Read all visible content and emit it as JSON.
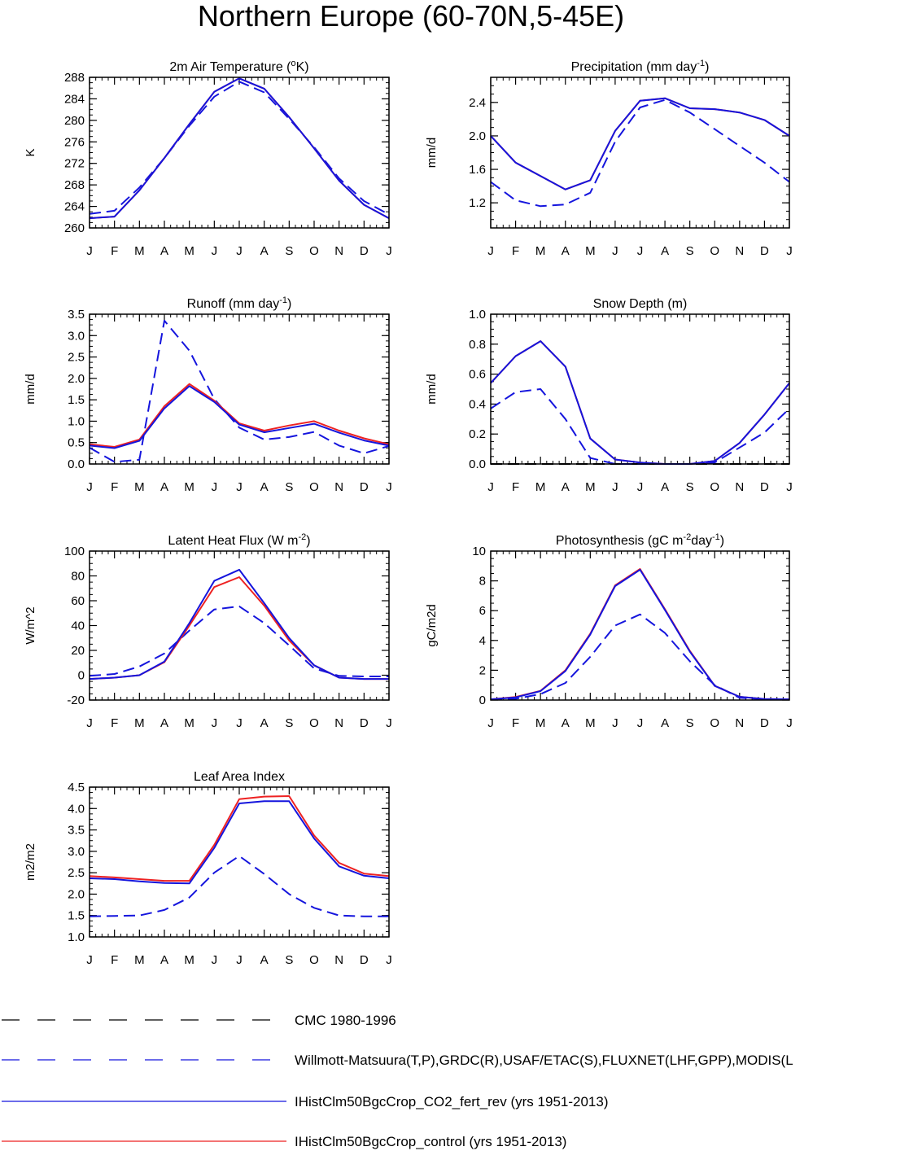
{
  "page_title": "Northern Europe (60-70N,5-45E)",
  "colors": {
    "model_co2": "#1515dd",
    "model_control": "#ee2222",
    "obs": "#1515dd",
    "cmc": "#000000"
  },
  "legend": [
    {
      "label": "CMC 1980-1996",
      "color": "#000000",
      "dash": "dashed"
    },
    {
      "label": "Willmott-Matsuura(T,P),GRDC(R),USAF/ETAC(S),FLUXNET(LHF,GPP),MODIS(L",
      "color": "#1515dd",
      "dash": "dashed"
    },
    {
      "label": "IHistClm50BgcCrop_CO2_fert_rev (yrs 1951-2013)",
      "color": "#1515dd",
      "dash": "solid"
    },
    {
      "label": "IHistClm50BgcCrop_control (yrs 1951-2013)",
      "color": "#ee2222",
      "dash": "solid"
    }
  ],
  "chart_data": [
    {
      "type": "line",
      "title": "2m Air Temperature (",
      "title_sup": "o",
      "title_after": "K)",
      "ylabel": "K",
      "categories": [
        "J",
        "F",
        "M",
        "A",
        "M",
        "J",
        "J",
        "A",
        "S",
        "O",
        "N",
        "D",
        "J"
      ],
      "ylim": [
        260,
        288
      ],
      "yticks": [
        "260",
        "264",
        "268",
        "272",
        "276",
        "280",
        "284",
        "288"
      ],
      "series": [
        {
          "color": "#1515dd",
          "dash": "dashed",
          "values": [
            262.6,
            263.2,
            267.5,
            273.0,
            279.0,
            284.4,
            287.2,
            285.2,
            280.3,
            275.0,
            269.2,
            265.0,
            262.5
          ]
        },
        {
          "color": "#ee2222",
          "dash": "solid",
          "values": [
            261.8,
            262.1,
            267.0,
            273.0,
            279.3,
            285.3,
            287.8,
            285.9,
            280.6,
            274.8,
            268.8,
            264.3,
            261.8
          ]
        },
        {
          "color": "#1515dd",
          "dash": "solid",
          "values": [
            261.8,
            262.1,
            267.0,
            273.0,
            279.3,
            285.3,
            287.8,
            285.9,
            280.6,
            274.8,
            268.8,
            264.3,
            261.8
          ]
        }
      ]
    },
    {
      "type": "line",
      "title": "Precipitation (mm day",
      "title_sup": "-1",
      "title_after": ")",
      "ylabel": "mm/d",
      "categories": [
        "J",
        "F",
        "M",
        "A",
        "M",
        "J",
        "J",
        "A",
        "S",
        "O",
        "N",
        "D",
        "J"
      ],
      "ylim": [
        0.9,
        2.7
      ],
      "yticks": [
        "1.2",
        "1.6",
        "2.0",
        "2.4"
      ],
      "series": [
        {
          "color": "#1515dd",
          "dash": "dashed",
          "values": [
            1.45,
            1.23,
            1.16,
            1.18,
            1.32,
            1.93,
            2.34,
            2.43,
            2.28,
            2.08,
            1.88,
            1.68,
            1.45
          ]
        },
        {
          "color": "#ee2222",
          "dash": "solid",
          "values": [
            2.0,
            1.68,
            1.52,
            1.36,
            1.47,
            2.06,
            2.42,
            2.45,
            2.33,
            2.32,
            2.28,
            2.19,
            2.0
          ]
        },
        {
          "color": "#1515dd",
          "dash": "solid",
          "values": [
            2.0,
            1.68,
            1.52,
            1.36,
            1.47,
            2.06,
            2.42,
            2.45,
            2.33,
            2.32,
            2.28,
            2.19,
            2.0
          ]
        }
      ]
    },
    {
      "type": "line",
      "title": "Runoff (mm day",
      "title_sup": "-1",
      "title_after": ")",
      "ylabel": "mm/d",
      "categories": [
        "J",
        "F",
        "M",
        "A",
        "M",
        "J",
        "J",
        "A",
        "S",
        "O",
        "N",
        "D",
        "J"
      ],
      "ylim": [
        0,
        3.5
      ],
      "yticks": [
        "0.0",
        "0.5",
        "1.0",
        "1.5",
        "2.0",
        "2.5",
        "3.0",
        "3.5"
      ],
      "series": [
        {
          "color": "#1515dd",
          "dash": "dashed",
          "values": [
            0.38,
            0.05,
            0.1,
            3.35,
            2.65,
            1.52,
            0.85,
            0.57,
            0.63,
            0.75,
            0.43,
            0.25,
            0.42
          ]
        },
        {
          "color": "#ee2222",
          "dash": "solid",
          "values": [
            0.46,
            0.4,
            0.57,
            1.35,
            1.87,
            1.48,
            0.95,
            0.78,
            0.9,
            1.0,
            0.78,
            0.6,
            0.46
          ]
        },
        {
          "color": "#1515dd",
          "dash": "solid",
          "values": [
            0.43,
            0.37,
            0.54,
            1.3,
            1.82,
            1.45,
            0.92,
            0.74,
            0.84,
            0.94,
            0.73,
            0.55,
            0.43
          ]
        }
      ]
    },
    {
      "type": "line",
      "title": "Snow Depth (m)",
      "title_sup": "",
      "title_after": "",
      "ylabel": "mm/d",
      "categories": [
        "J",
        "F",
        "M",
        "A",
        "M",
        "J",
        "J",
        "A",
        "S",
        "O",
        "N",
        "D",
        "J"
      ],
      "ylim": [
        0,
        1.0
      ],
      "yticks": [
        "0.0",
        "0.2",
        "0.4",
        "0.6",
        "0.8",
        "1.0"
      ],
      "series": [
        {
          "color": "#000000",
          "dash": "dashed",
          "values": [
            0,
            0,
            0,
            0,
            0,
            0,
            0,
            0,
            0,
            0,
            0,
            0,
            0
          ]
        },
        {
          "color": "#1515dd",
          "dash": "dashed",
          "values": [
            0.37,
            0.48,
            0.5,
            0.3,
            0.04,
            0.0,
            0.0,
            0.0,
            0.0,
            0.01,
            0.11,
            0.21,
            0.37
          ]
        },
        {
          "color": "#ee2222",
          "dash": "solid",
          "values": [
            0.54,
            0.72,
            0.82,
            0.65,
            0.17,
            0.03,
            0.01,
            0.0,
            0.0,
            0.02,
            0.14,
            0.33,
            0.54
          ]
        },
        {
          "color": "#1515dd",
          "dash": "solid",
          "values": [
            0.54,
            0.72,
            0.82,
            0.65,
            0.17,
            0.03,
            0.01,
            0.0,
            0.0,
            0.02,
            0.14,
            0.33,
            0.54
          ]
        }
      ]
    },
    {
      "type": "line",
      "title": "Latent Heat Flux (W m",
      "title_sup": "-2",
      "title_after": ")",
      "ylabel": "W/m^2",
      "categories": [
        "J",
        "F",
        "M",
        "A",
        "M",
        "J",
        "J",
        "A",
        "S",
        "O",
        "N",
        "D",
        "J"
      ],
      "ylim": [
        -20,
        100
      ],
      "yticks": [
        "-20",
        "0",
        "20",
        "40",
        "60",
        "80",
        "100"
      ],
      "series": [
        {
          "color": "#1515dd",
          "dash": "dashed",
          "values": [
            -0.5,
            1.0,
            7.0,
            17.5,
            36.0,
            53.0,
            55.5,
            42.0,
            24.0,
            5.5,
            -0.5,
            -1.0,
            -1.0
          ]
        },
        {
          "color": "#ee2222",
          "dash": "solid",
          "values": [
            -3.0,
            -2.0,
            0.0,
            10.5,
            40.0,
            71.0,
            79.0,
            56.0,
            28.0,
            8.0,
            -2.0,
            -3.0,
            -3.0
          ]
        },
        {
          "color": "#1515dd",
          "dash": "solid",
          "values": [
            -3.0,
            -2.0,
            0.0,
            11.0,
            42.0,
            76.0,
            85.0,
            58.0,
            30.0,
            8.0,
            -2.0,
            -3.0,
            -3.0
          ]
        }
      ]
    },
    {
      "type": "line",
      "title": "Photosynthesis (gC m",
      "title_sup": "-2",
      "title_after": "day",
      "title_sup2": "-1",
      "title_after2": ")",
      "ylabel": "gC/m2d",
      "categories": [
        "J",
        "F",
        "M",
        "A",
        "M",
        "J",
        "J",
        "A",
        "S",
        "O",
        "N",
        "D",
        "J"
      ],
      "ylim": [
        0,
        10
      ],
      "yticks": [
        "0",
        "2",
        "4",
        "6",
        "8",
        "10"
      ],
      "series": [
        {
          "color": "#1515dd",
          "dash": "dashed",
          "values": [
            0.05,
            0.08,
            0.4,
            1.15,
            2.9,
            5.0,
            5.75,
            4.5,
            2.6,
            1.0,
            0.15,
            0.05,
            0.05
          ]
        },
        {
          "color": "#ee2222",
          "dash": "solid",
          "values": [
            0.05,
            0.2,
            0.62,
            2.0,
            4.45,
            7.7,
            8.8,
            6.1,
            3.3,
            0.95,
            0.22,
            0.07,
            0.05
          ]
        },
        {
          "color": "#1515dd",
          "dash": "solid",
          "values": [
            0.05,
            0.18,
            0.6,
            1.95,
            4.4,
            7.65,
            8.75,
            6.05,
            3.25,
            0.95,
            0.22,
            0.07,
            0.05
          ]
        }
      ]
    },
    {
      "type": "line",
      "title": "Leaf Area Index",
      "title_sup": "",
      "title_after": "",
      "ylabel": "m2/m2",
      "categories": [
        "J",
        "F",
        "M",
        "A",
        "M",
        "J",
        "J",
        "A",
        "S",
        "O",
        "N",
        "D",
        "J"
      ],
      "ylim": [
        1.0,
        4.5
      ],
      "yticks": [
        "1.0",
        "1.5",
        "2.0",
        "2.5",
        "3.0",
        "3.5",
        "4.0",
        "4.5"
      ],
      "series": [
        {
          "color": "#1515dd",
          "dash": "dashed",
          "values": [
            1.48,
            1.49,
            1.5,
            1.63,
            1.92,
            2.5,
            2.89,
            2.47,
            2.0,
            1.68,
            1.5,
            1.48,
            1.48
          ]
        },
        {
          "color": "#ee2222",
          "dash": "solid",
          "values": [
            2.42,
            2.39,
            2.35,
            2.31,
            2.31,
            3.15,
            4.22,
            4.28,
            4.29,
            3.37,
            2.73,
            2.48,
            2.42
          ]
        },
        {
          "color": "#1515dd",
          "dash": "solid",
          "values": [
            2.37,
            2.35,
            2.3,
            2.26,
            2.25,
            3.08,
            4.12,
            4.17,
            4.17,
            3.3,
            2.65,
            2.43,
            2.37
          ]
        }
      ]
    }
  ]
}
